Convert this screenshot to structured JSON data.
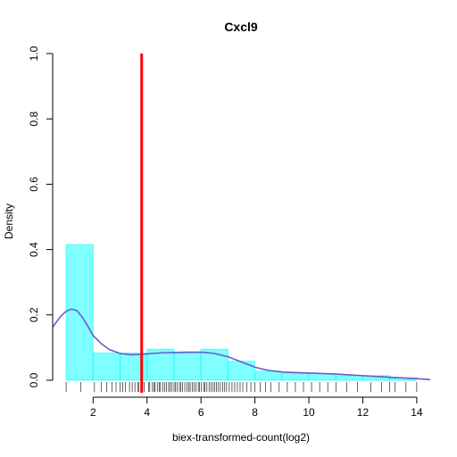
{
  "chart_data": {
    "type": "histogram",
    "title": "Cxcl9",
    "xlabel": "biex-transformed-count(log2)",
    "ylabel": "Density",
    "xlim": [
      0.5,
      14.5
    ],
    "ylim": [
      0,
      1.0
    ],
    "x_ticks": [
      "2",
      "4",
      "6",
      "8",
      "10",
      "12",
      "14"
    ],
    "x_tick_values": [
      2,
      4,
      6,
      8,
      10,
      12,
      14
    ],
    "y_ticks": [
      "0.0",
      "0.2",
      "0.4",
      "0.6",
      "0.8",
      "1.0"
    ],
    "y_tick_values": [
      0,
      0.2,
      0.4,
      0.6,
      0.8,
      1.0
    ],
    "histogram": {
      "color": "#00ffff",
      "bins": [
        {
          "x0": 1,
          "x1": 2,
          "density": 0.415
        },
        {
          "x0": 2,
          "x1": 3,
          "density": 0.083
        },
        {
          "x0": 3,
          "x1": 4,
          "density": 0.083
        },
        {
          "x0": 4,
          "x1": 5,
          "density": 0.095
        },
        {
          "x0": 5,
          "x1": 6,
          "density": 0.083
        },
        {
          "x0": 6,
          "x1": 7,
          "density": 0.095
        },
        {
          "x0": 7,
          "x1": 8,
          "density": 0.058
        },
        {
          "x0": 8,
          "x1": 9,
          "density": 0.028
        },
        {
          "x0": 9,
          "x1": 10,
          "density": 0.021
        },
        {
          "x0": 10,
          "x1": 11,
          "density": 0.021
        },
        {
          "x0": 11,
          "x1": 12,
          "density": 0.014
        },
        {
          "x0": 12,
          "x1": 13,
          "density": 0.014
        },
        {
          "x0": 13,
          "x1": 14,
          "density": 0.007
        }
      ]
    },
    "density_curve": {
      "color": "#6a5acd",
      "x": [
        0.5,
        0.8,
        1.0,
        1.2,
        1.4,
        1.6,
        1.8,
        2.0,
        2.3,
        2.6,
        3.0,
        3.4,
        3.8,
        4.2,
        4.6,
        5.0,
        5.5,
        6.0,
        6.5,
        7.0,
        7.5,
        8.0,
        8.5,
        9.0,
        10.0,
        11.0,
        12.0,
        13.0,
        14.0,
        14.5
      ],
      "y": [
        0.163,
        0.196,
        0.211,
        0.218,
        0.213,
        0.193,
        0.166,
        0.137,
        0.112,
        0.094,
        0.082,
        0.078,
        0.079,
        0.082,
        0.084,
        0.085,
        0.086,
        0.086,
        0.082,
        0.072,
        0.056,
        0.04,
        0.03,
        0.025,
        0.022,
        0.019,
        0.014,
        0.009,
        0.005,
        0.002
      ]
    },
    "vline": {
      "x": 3.8,
      "color": "#ff0000"
    },
    "rug": [
      1.0,
      1.55,
      2.05,
      2.3,
      2.5,
      2.7,
      2.85,
      3.0,
      3.1,
      3.2,
      3.35,
      3.45,
      3.55,
      3.65,
      3.7,
      3.9,
      4.05,
      4.1,
      4.2,
      4.25,
      4.3,
      4.38,
      4.45,
      4.5,
      4.58,
      4.65,
      4.72,
      4.8,
      4.85,
      4.92,
      5.0,
      5.05,
      5.12,
      5.2,
      5.25,
      5.32,
      5.4,
      5.48,
      5.55,
      5.6,
      5.68,
      5.75,
      5.82,
      5.9,
      5.95,
      6.02,
      6.1,
      6.15,
      6.22,
      6.3,
      6.38,
      6.45,
      6.5,
      6.58,
      6.65,
      6.72,
      6.8,
      6.88,
      6.95,
      7.05,
      7.15,
      7.25,
      7.35,
      7.45,
      7.55,
      7.7,
      7.85,
      8.0,
      8.2,
      8.4,
      8.6,
      8.9,
      9.2,
      9.5,
      9.8,
      10.1,
      10.4,
      10.7,
      11.0,
      11.4,
      11.8,
      12.3,
      12.7,
      13.0,
      13.2,
      13.6,
      14.0
    ]
  }
}
